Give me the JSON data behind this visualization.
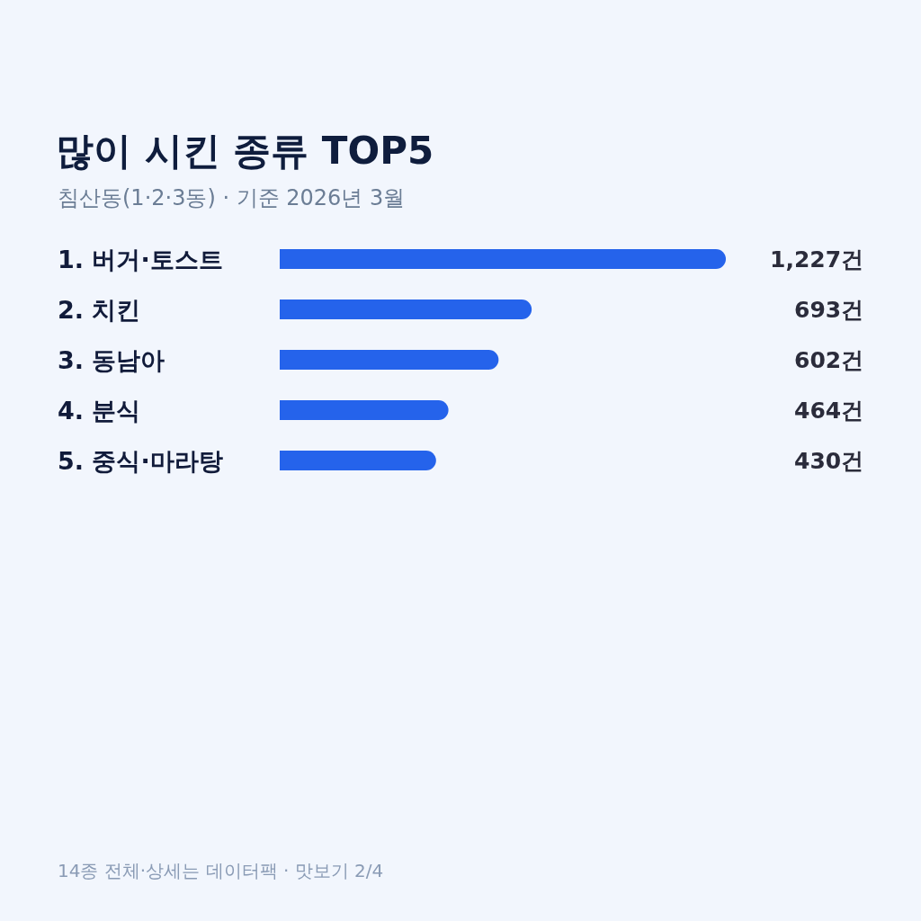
{
  "chart_data": {
    "type": "bar",
    "orientation": "horizontal",
    "title": "많이 시킨 종류 TOP5",
    "subtitle": "침산동(1·2·3동) · 기준 2026년 3월",
    "categories": [
      "1. 버거·토스트",
      "2. 치킨",
      "3. 동남아",
      "4. 분식",
      "5. 중식·마라탕"
    ],
    "values": [
      1227,
      693,
      602,
      464,
      430
    ],
    "color": "#2563eb",
    "value_labels": [
      "1,227건",
      "693건",
      "602건",
      "464건",
      "430건"
    ],
    "xlim": [
      0,
      1227
    ],
    "annotations": [
      "14종 전체·상세는 데이터팩 · 맛보기 2/4"
    ]
  }
}
